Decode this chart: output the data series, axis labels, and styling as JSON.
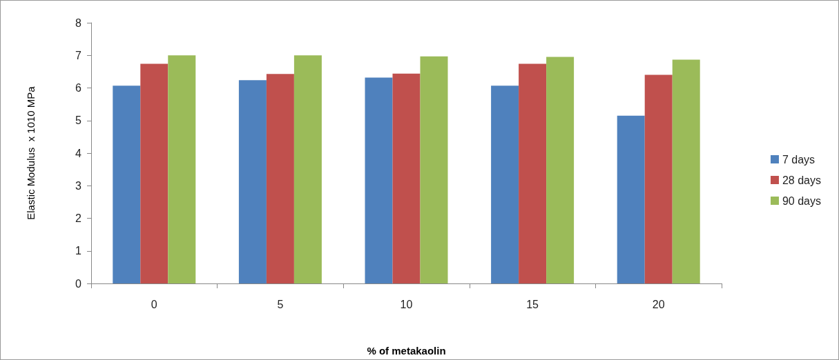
{
  "chart_data": {
    "type": "bar",
    "xlabel": "% of metakaolin",
    "ylabel": "Elastic Modulus  x 1010 MPa",
    "categories": [
      "0",
      "5",
      "10",
      "15",
      "20"
    ],
    "series": [
      {
        "name": "7 days",
        "color": "#4f81bd",
        "values": [
          6.07,
          6.24,
          6.32,
          6.07,
          5.15
        ]
      },
      {
        "name": "28 days",
        "color": "#c0504d",
        "values": [
          6.74,
          6.43,
          6.44,
          6.74,
          6.4
        ]
      },
      {
        "name": "90 days",
        "color": "#9bbb59",
        "values": [
          7.0,
          7.0,
          6.97,
          6.95,
          6.87
        ]
      }
    ],
    "ylim": [
      0,
      8
    ],
    "yticks": [
      0,
      1,
      2,
      3,
      4,
      5,
      6,
      7,
      8
    ],
    "grid": false,
    "legend": "right"
  }
}
